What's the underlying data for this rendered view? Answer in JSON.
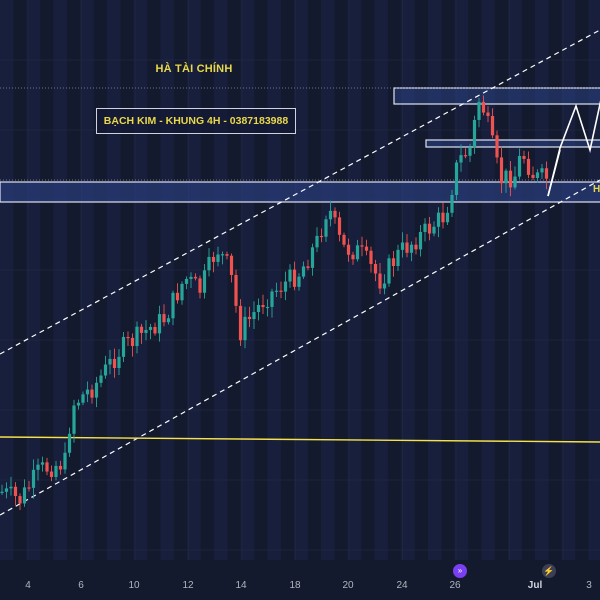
{
  "chart": {
    "title": "HÀ TÀI CHÍNH",
    "info_box": "BẠCH KIM - KHUNG 4H - 0387183988",
    "edge_label": "H",
    "x_ticks": [
      "4",
      "6",
      "10",
      "12",
      "14",
      "18",
      "20",
      "24",
      "26",
      "Jul",
      "3"
    ],
    "events": [
      {
        "icon": "double-chevron-icon",
        "glyph": "»"
      },
      {
        "icon": "lightning-icon",
        "glyph": "⚡"
      }
    ]
  },
  "colors": {
    "background": "#141a2e",
    "bull": "#26a69a",
    "bear": "#ef5350",
    "channel": "#ffffff",
    "support_line": "#f7e14a",
    "zone_fill": "#2a3f80",
    "zone_border": "#dfe3f0",
    "label_text": "#e8d84a"
  }
}
